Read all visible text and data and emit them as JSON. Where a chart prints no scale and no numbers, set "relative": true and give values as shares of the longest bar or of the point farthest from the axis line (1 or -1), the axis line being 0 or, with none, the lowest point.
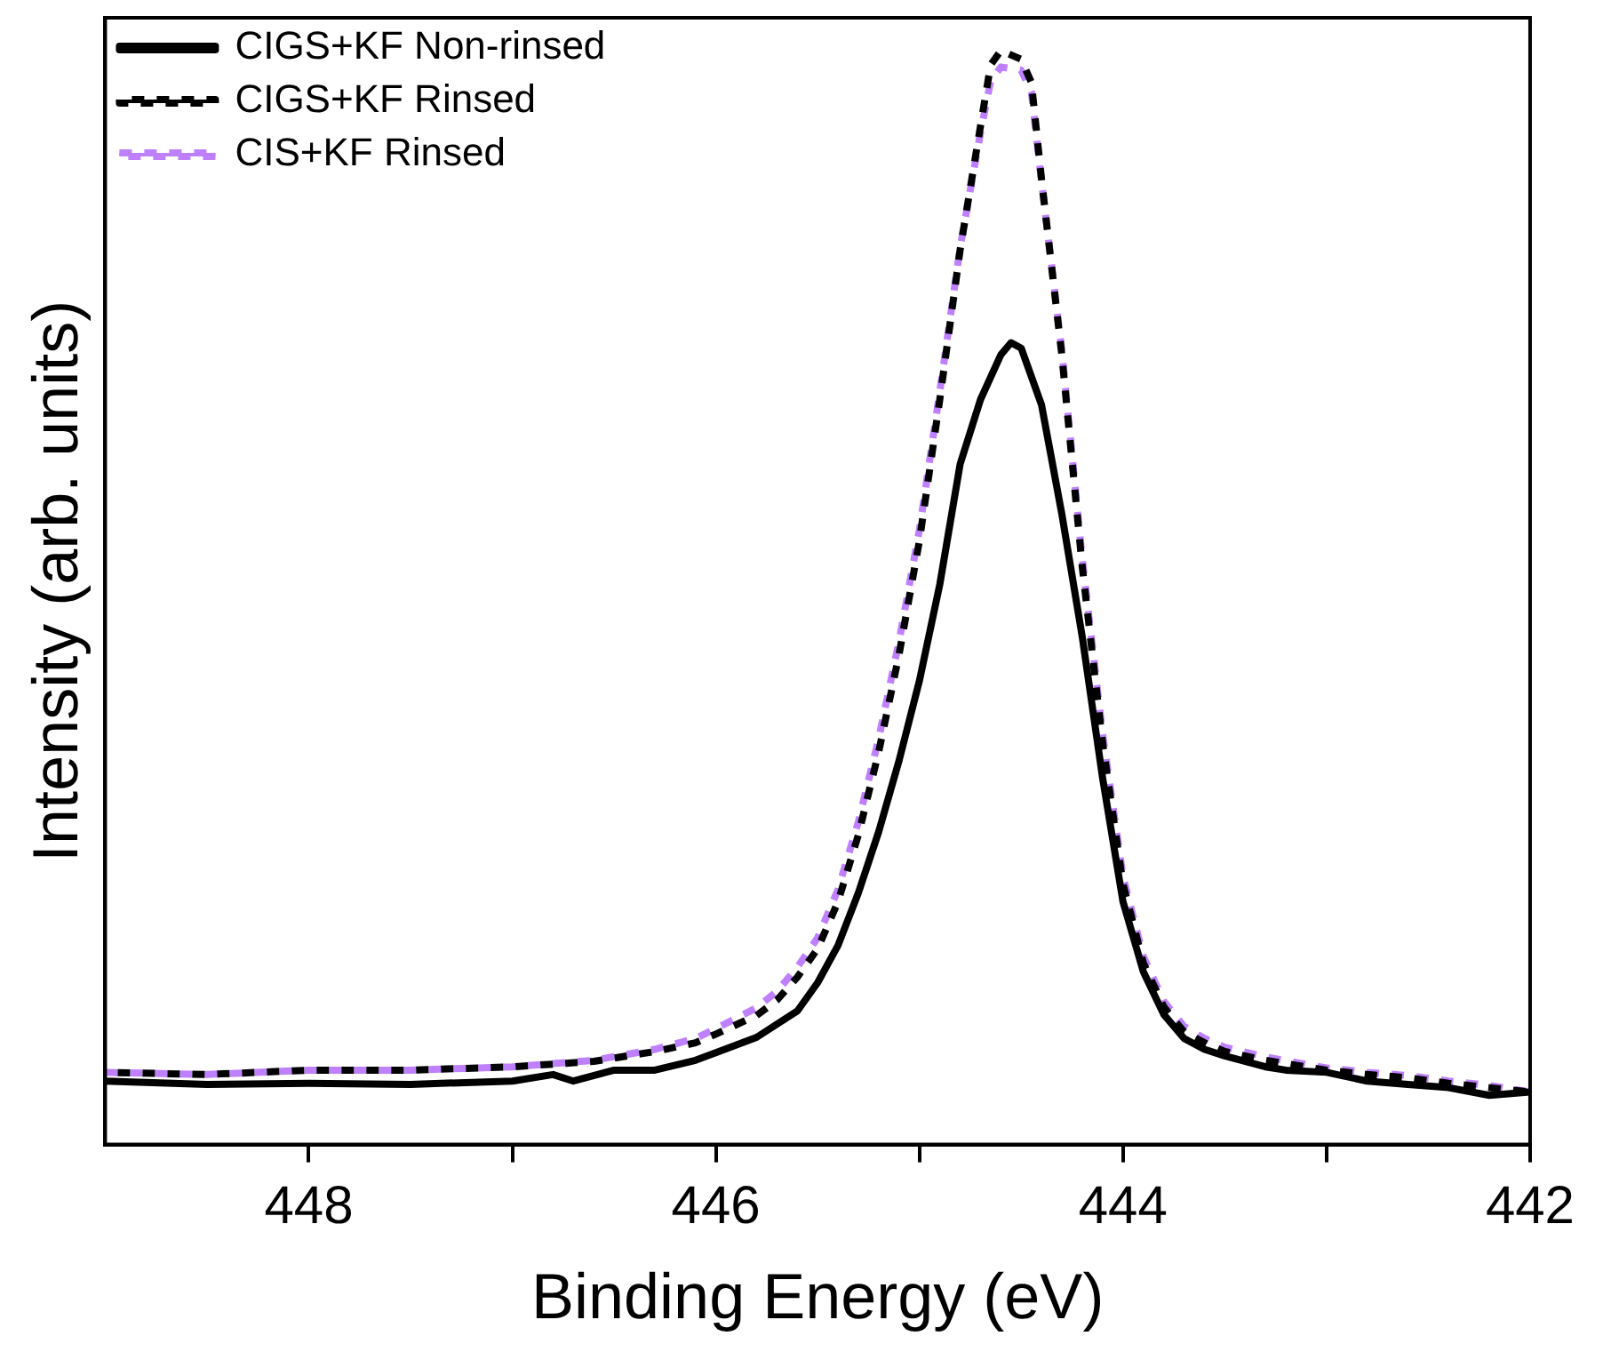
{
  "chart_data": {
    "type": "line",
    "xlabel": "Binding Energy (eV)",
    "ylabel": "Intensity (arb. units)",
    "relative": true,
    "xlim": [
      449,
      442
    ],
    "xticks": [
      448,
      {
        "value": 447,
        "label": null
      },
      446,
      {
        "value": 445,
        "label": null
      },
      444,
      {
        "value": 443,
        "label": null
      },
      442
    ],
    "legend": "top left",
    "marker": "none",
    "grid": false,
    "series": [
      {
        "name": "CIGS+KF Non-rinsed",
        "color": "#000000",
        "line_style": "solid",
        "x": [
          449,
          448.5,
          448,
          447.5,
          447,
          446.8,
          446.7,
          446.5,
          446.3,
          446.1,
          446,
          445.8,
          445.6,
          445.5,
          445.4,
          445.3,
          445.2,
          445.1,
          445,
          444.9,
          444.8,
          444.7,
          444.6,
          444.55,
          444.5,
          444.4,
          444.3,
          444.2,
          444.1,
          444,
          443.9,
          443.8,
          443.7,
          443.6,
          443.5,
          443.3,
          443.2,
          443,
          442.8,
          442.6,
          442.4,
          442.2,
          442
        ],
        "values": [
          0.058,
          0.055,
          0.056,
          0.055,
          0.058,
          0.064,
          0.058,
          0.068,
          0.068,
          0.077,
          0.084,
          0.098,
          0.122,
          0.148,
          0.182,
          0.23,
          0.286,
          0.351,
          0.424,
          0.512,
          0.622,
          0.681,
          0.722,
          0.733,
          0.728,
          0.676,
          0.576,
          0.464,
          0.335,
          0.222,
          0.158,
          0.119,
          0.097,
          0.087,
          0.081,
          0.071,
          0.068,
          0.066,
          0.058,
          0.055,
          0.052,
          0.045,
          0.048
        ]
      },
      {
        "name": "CIGS+KF Rinsed",
        "color": "#000000",
        "line_style": "dashed",
        "x": [
          449,
          448.5,
          448,
          447.5,
          447,
          446.6,
          446.3,
          446.1,
          446,
          445.8,
          445.7,
          445.6,
          445.5,
          445.4,
          445.3,
          445.2,
          445.1,
          445,
          444.9,
          444.8,
          444.7,
          444.65,
          444.6,
          444.5,
          444.45,
          444.4,
          444.3,
          444.2,
          444.1,
          444,
          443.9,
          443.8,
          443.7,
          443.6,
          443.5,
          443.3,
          443,
          442.8,
          442.6,
          442.4,
          442.2,
          442
        ],
        "values": [
          0.066,
          0.064,
          0.068,
          0.068,
          0.071,
          0.076,
          0.085,
          0.093,
          0.101,
          0.118,
          0.132,
          0.153,
          0.179,
          0.222,
          0.283,
          0.359,
          0.448,
          0.552,
          0.681,
          0.818,
          0.931,
          0.987,
          1,
          0.992,
          0.971,
          0.882,
          0.721,
          0.528,
          0.367,
          0.238,
          0.166,
          0.126,
          0.103,
          0.093,
          0.085,
          0.077,
          0.068,
          0.064,
          0.061,
          0.056,
          0.052,
          0.048
        ]
      },
      {
        "name": "CIS+KF Rinsed",
        "color": "#bf80ff",
        "line_style": "dashed",
        "x": [
          449,
          448.5,
          448,
          447.5,
          447,
          446.6,
          446.3,
          446.1,
          446,
          445.8,
          445.7,
          445.6,
          445.5,
          445.4,
          445.3,
          445.2,
          445.1,
          445,
          444.9,
          444.8,
          444.7,
          444.65,
          444.6,
          444.5,
          444.45,
          444.4,
          444.3,
          444.2,
          444.1,
          444,
          443.9,
          443.8,
          443.7,
          443.6,
          443.5,
          443.3,
          443,
          442.8,
          442.6,
          442.4,
          442.2,
          442
        ],
        "values": [
          0.066,
          0.064,
          0.068,
          0.068,
          0.071,
          0.077,
          0.087,
          0.097,
          0.106,
          0.125,
          0.14,
          0.162,
          0.189,
          0.233,
          0.295,
          0.371,
          0.46,
          0.562,
          0.688,
          0.82,
          0.925,
          0.972,
          0.985,
          0.982,
          0.962,
          0.88,
          0.725,
          0.535,
          0.375,
          0.245,
          0.172,
          0.131,
          0.108,
          0.097,
          0.089,
          0.08,
          0.07,
          0.066,
          0.063,
          0.058,
          0.054,
          0.048
        ]
      }
    ]
  }
}
